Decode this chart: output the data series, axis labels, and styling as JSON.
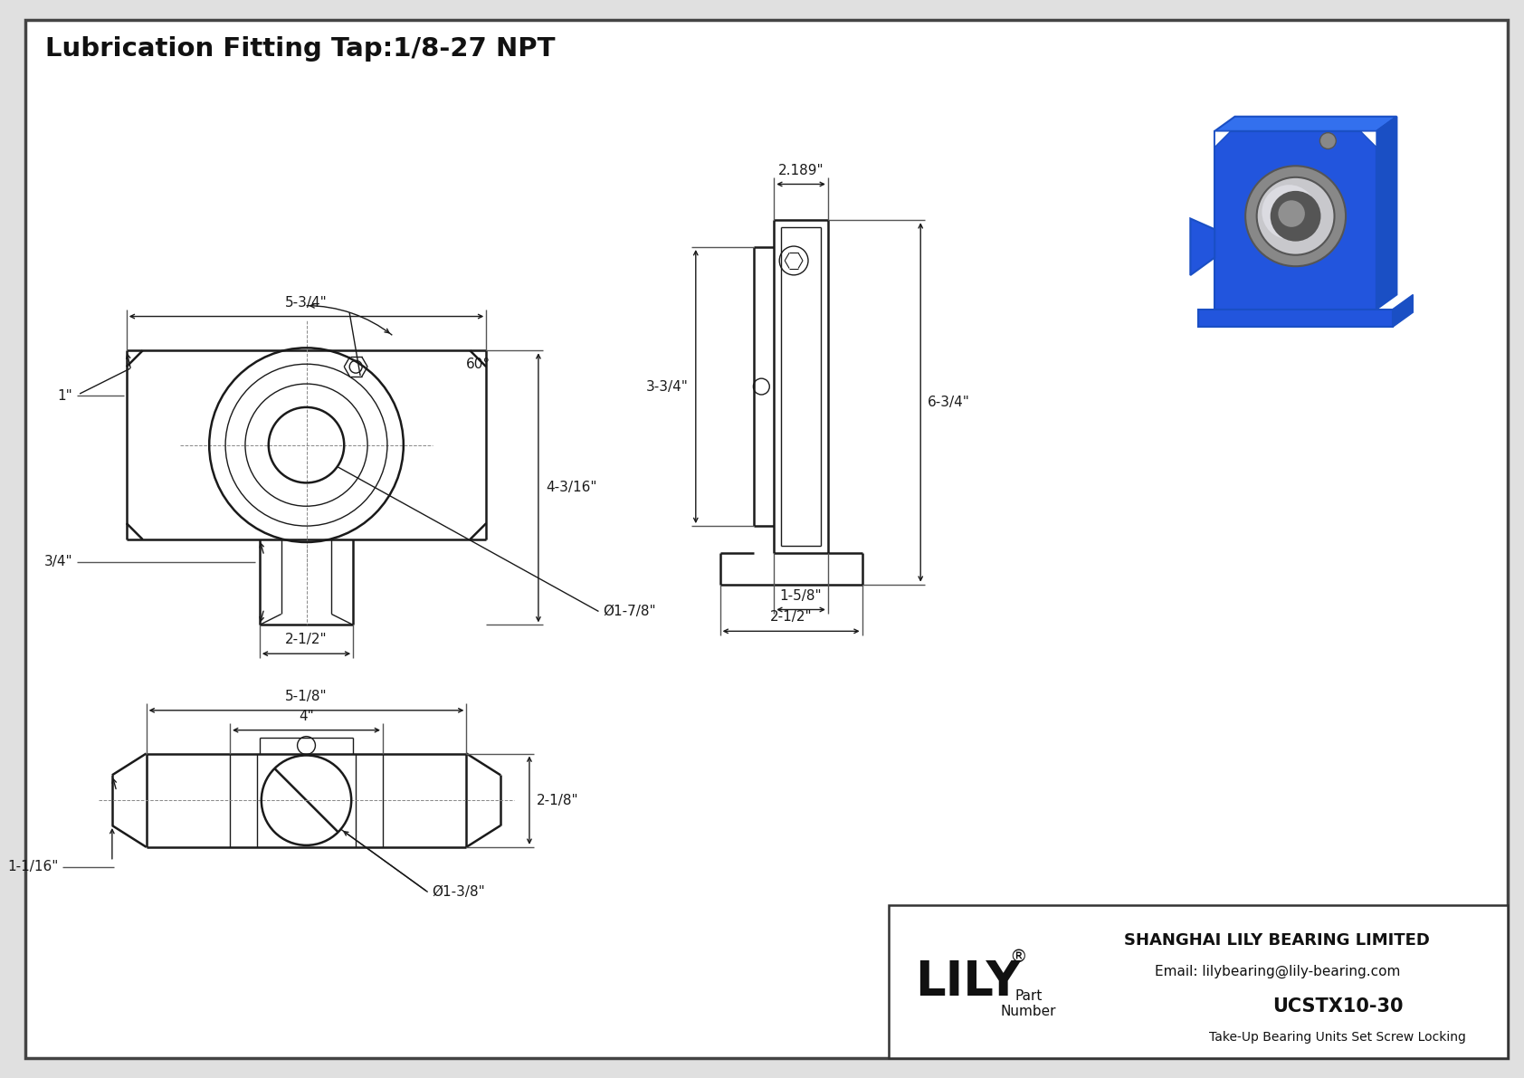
{
  "title": "Lubrication Fitting Tap:1/8-27 NPT",
  "bg_color": "#ffffff",
  "line_color": "#1a1a1a",
  "title_box": {
    "company": "SHANGHAI LILY BEARING LIMITED",
    "email": "Email: lilybearing@lily-bearing.com",
    "part_number": "UCSTX10-30",
    "description": "Take-Up Bearing Units Set Screw Locking",
    "brand": "LILY"
  },
  "front_dims": {
    "width": "5-3/4\"",
    "height": "4-3/16\"",
    "slot_w": "2-1/2\"",
    "bore": "Ø1-7/8\"",
    "side_h": "1\"",
    "slot_h": "3/4\"",
    "angle": "60°"
  },
  "side_dims": {
    "width": "2.189\"",
    "total_h": "6-3/4\"",
    "bearing_h": "3-3/4\"",
    "base_w1": "1-5/8\"",
    "base_w2": "2-1/2\""
  },
  "bottom_dims": {
    "outer_w": "5-1/8\"",
    "inner_w": "4\"",
    "height": "2-1/8\"",
    "tab": "1-1/16\"",
    "bore": "Ø1-3/8\""
  }
}
